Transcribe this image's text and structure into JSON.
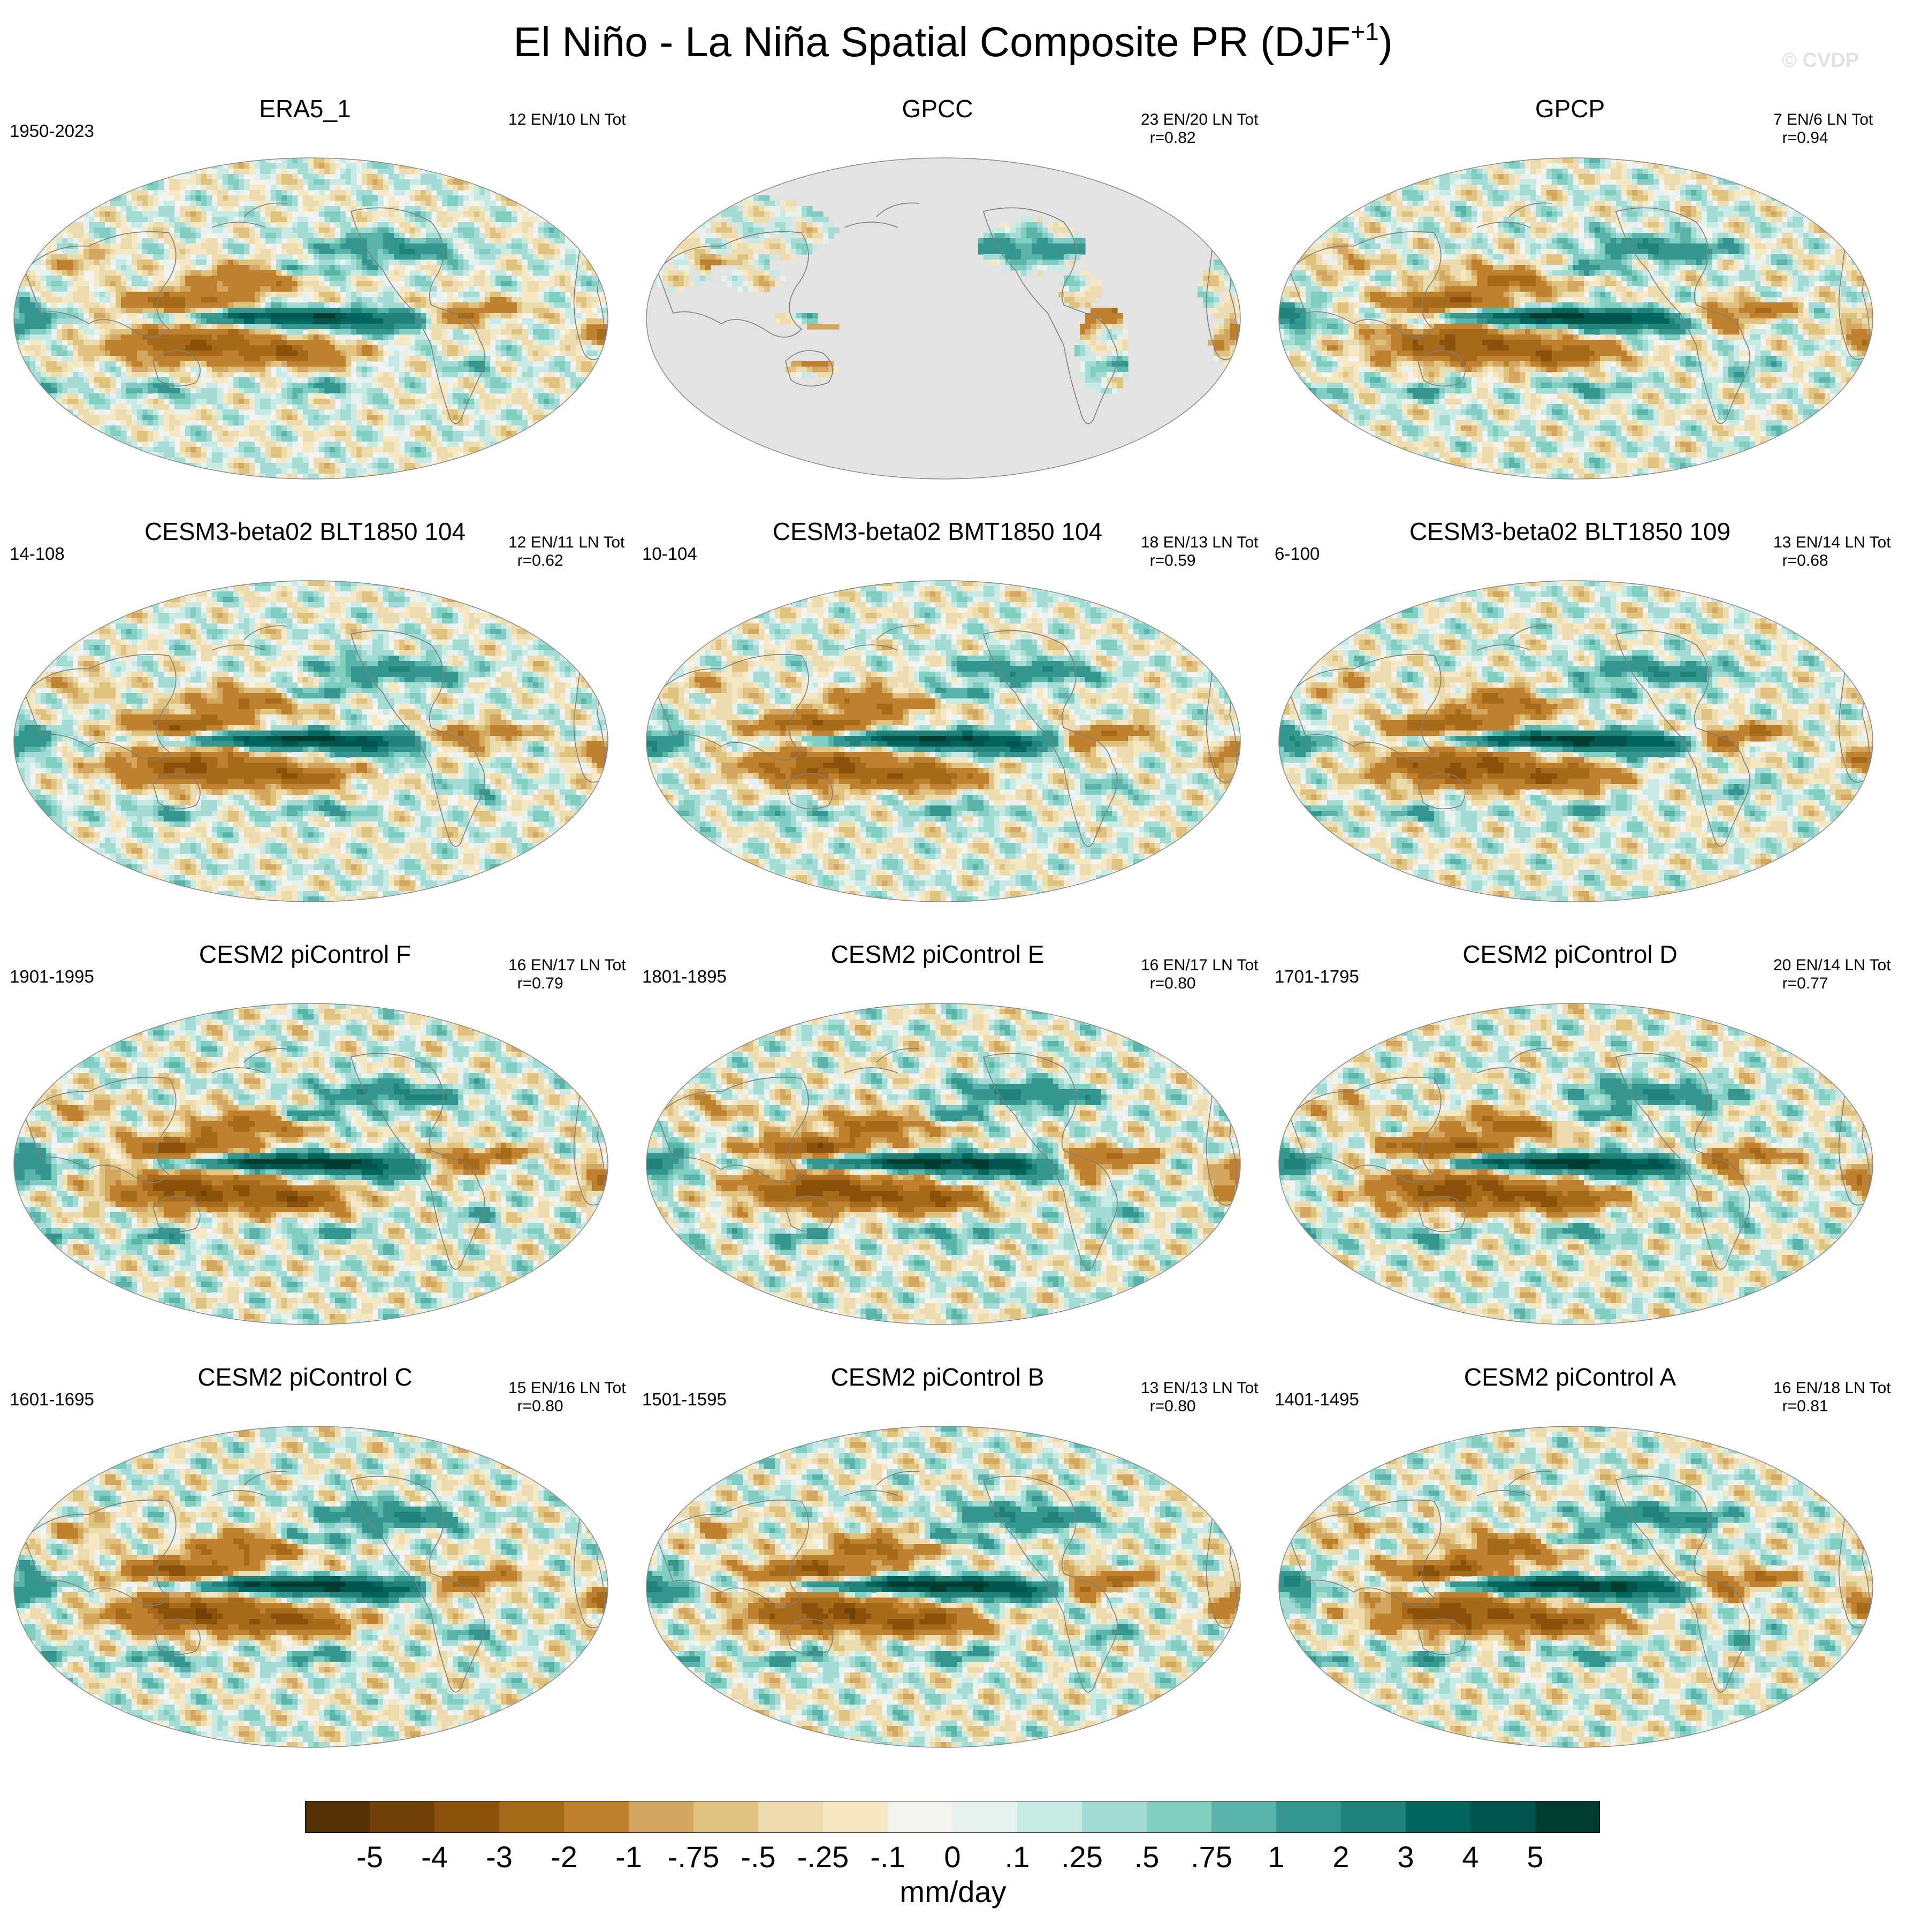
{
  "figure": {
    "title_main": "El Niño - La Niña Spatial Composite PR (DJF",
    "title_sup": "+1",
    "title_close": ")",
    "watermark": "© CVDP"
  },
  "colors": {
    "ocean_masked": "#e3e3e3",
    "coast": "#7f7f7f",
    "scale": [
      "#543005",
      "#6f4109",
      "#8c510a",
      "#a76a1b",
      "#bf812d",
      "#d3a75f",
      "#dfc27d",
      "#ecdbaf",
      "#f6e8c3",
      "#f4f3ef",
      "#e6f2f0",
      "#c7eae5",
      "#a4dcd5",
      "#80cdc1",
      "#5ab4a9",
      "#35978f",
      "#1f8379",
      "#01665e",
      "#00564c",
      "#003c30"
    ]
  },
  "colorbar": {
    "labels": [
      "-5",
      "-4",
      "-3",
      "-2",
      "-1",
      "-.75",
      "-.5",
      "-.25",
      "-.1",
      "0",
      ".1",
      ".25",
      ".5",
      ".75",
      "1",
      "2",
      "3",
      "4",
      "5"
    ],
    "units": "mm/day"
  },
  "panels": [
    {
      "title": "ERA5_1",
      "years": "1950-2023",
      "stats": "12 EN/10 LN Tot",
      "land_only": false,
      "amp": 0.9,
      "seed": 1
    },
    {
      "title": "GPCC",
      "years": "",
      "stats": "23 EN/20 LN Tot\n  r=0.82",
      "land_only": true,
      "amp": 0.85,
      "seed": 2
    },
    {
      "title": "GPCP",
      "years": "",
      "stats": "7 EN/6 LN Tot\n  r=0.94",
      "land_only": false,
      "amp": 1.0,
      "seed": 3
    },
    {
      "title": "CESM3-beta02 BLT1850 104",
      "years": "14-108",
      "stats": "12 EN/11 LN Tot\n  r=0.62",
      "land_only": false,
      "amp": 0.95,
      "seed": 4
    },
    {
      "title": "CESM3-beta02 BMT1850 104",
      "years": "10-104",
      "stats": "18 EN/13 LN Tot\n  r=0.59",
      "land_only": false,
      "amp": 0.95,
      "seed": 5
    },
    {
      "title": "CESM3-beta02 BLT1850 109",
      "years": "6-100",
      "stats": "13 EN/14 LN Tot\n  r=0.68",
      "land_only": false,
      "amp": 1.0,
      "seed": 6
    },
    {
      "title": "CESM2 piControl F",
      "years": "1901-1995",
      "stats": "16 EN/17 LN Tot\n  r=0.79",
      "land_only": false,
      "amp": 1.1,
      "seed": 7
    },
    {
      "title": "CESM2 piControl E",
      "years": "1801-1895",
      "stats": "16 EN/17 LN Tot\n  r=0.80",
      "land_only": false,
      "amp": 1.1,
      "seed": 8
    },
    {
      "title": "CESM2 piControl D",
      "years": "1701-1795",
      "stats": "20 EN/14 LN Tot\n  r=0.77",
      "land_only": false,
      "amp": 1.1,
      "seed": 9
    },
    {
      "title": "CESM2 piControl C",
      "years": "1601-1695",
      "stats": "15 EN/16 LN Tot\n  r=0.80",
      "land_only": false,
      "amp": 1.1,
      "seed": 10
    },
    {
      "title": "CESM2 piControl B",
      "years": "1501-1595",
      "stats": "13 EN/13 LN Tot\n  r=0.80",
      "land_only": false,
      "amp": 1.1,
      "seed": 11
    },
    {
      "title": "CESM2 piControl A",
      "years": "1401-1495",
      "stats": "16 EN/18 LN Tot\n  r=0.81",
      "land_only": false,
      "amp": 1.1,
      "seed": 12
    }
  ]
}
